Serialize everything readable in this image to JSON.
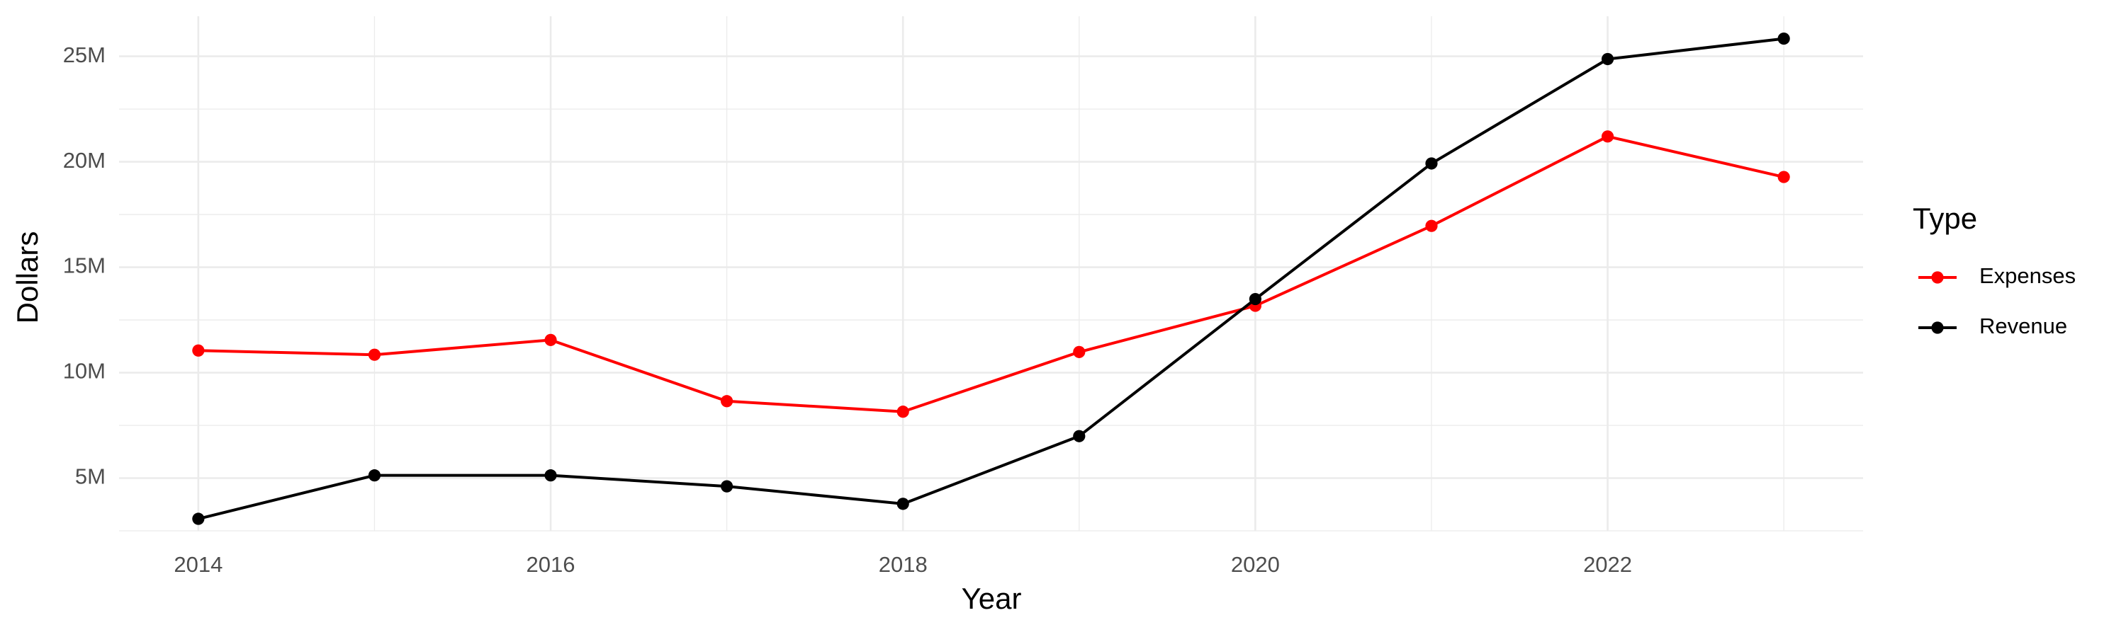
{
  "chart_data": {
    "type": "line",
    "x_label": "Year",
    "y_label": "Dollars",
    "legend_title": "Type",
    "x": [
      2014,
      2015,
      2016,
      2017,
      2018,
      2019,
      2020,
      2021,
      2022,
      2023
    ],
    "series": [
      {
        "name": "Expenses",
        "color": "#ff0000",
        "values": [
          11050000,
          10850000,
          11550000,
          8650000,
          8150000,
          10980000,
          13170000,
          16960000,
          21200000,
          19280000
        ]
      },
      {
        "name": "Revenue",
        "color": "#000000",
        "values": [
          3070000,
          5130000,
          5130000,
          4610000,
          3780000,
          6990000,
          13490000,
          19920000,
          24870000,
          25840000
        ]
      }
    ],
    "xlim": [
      2013.55,
      2023.45
    ],
    "xticks": [
      2014,
      2016,
      2018,
      2020,
      2022
    ],
    "ylim": [
      2500000,
      26900000
    ],
    "yticks": [
      {
        "value": 5000000,
        "label": "5M"
      },
      {
        "value": 10000000,
        "label": "10M"
      },
      {
        "value": 15000000,
        "label": "15M"
      },
      {
        "value": 20000000,
        "label": "20M"
      },
      {
        "value": 25000000,
        "label": "25M"
      }
    ],
    "grid": true,
    "legend_position": "right"
  }
}
